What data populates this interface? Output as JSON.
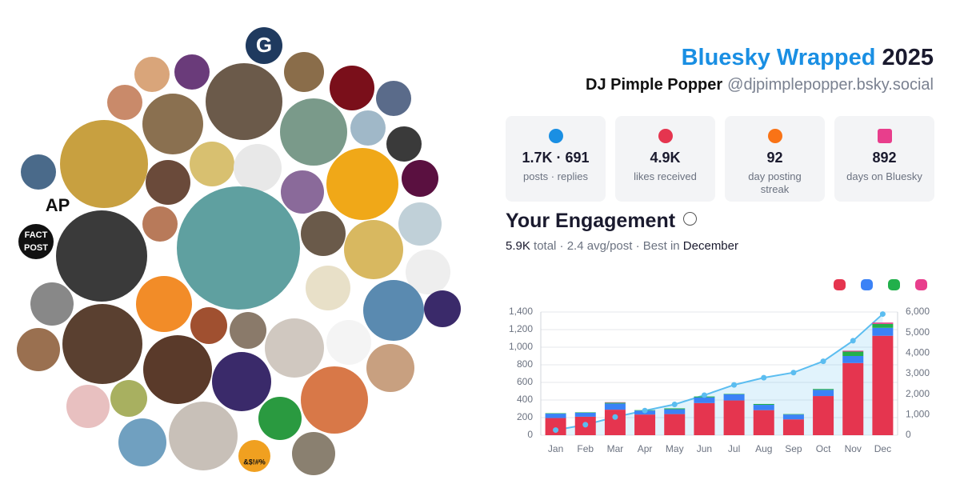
{
  "header": {
    "title": "Bluesky Wrapped",
    "year": "2025",
    "name": "DJ Pimple Popper",
    "handle": "@djpimplepopper.bsky.social"
  },
  "avatar_text": [
    "G",
    "AP",
    "FACT",
    "POST",
    "&$!#%"
  ],
  "stats": [
    {
      "value": "1.7K · 691",
      "label": "posts · replies"
    },
    {
      "value": "4.9K",
      "label": "likes received"
    },
    {
      "value": "92",
      "label": "day posting streak"
    },
    {
      "value": "892",
      "label": "days on Bluesky"
    }
  ],
  "engagement": {
    "heading": "Your Engagement",
    "summary": [
      "5.9K",
      "total · 2.4 avg/post · Best in",
      "December"
    ]
  },
  "chart_data": {
    "type": "bar",
    "categories": [
      "Jan",
      "Feb",
      "Mar",
      "Apr",
      "May",
      "Jun",
      "Jul",
      "Aug",
      "Sep",
      "Oct",
      "Nov",
      "Dec"
    ],
    "series": [
      {
        "color": "#e5354f",
        "values": [
          195,
          210,
          290,
          235,
          240,
          365,
          395,
          285,
          180,
          445,
          820,
          1130
        ]
      },
      {
        "color": "#3b82f6",
        "values": [
          50,
          45,
          70,
          45,
          55,
          65,
          70,
          60,
          55,
          70,
          80,
          90
        ]
      },
      {
        "color": "#22b04b",
        "values": [
          5,
          5,
          10,
          5,
          10,
          10,
          5,
          10,
          5,
          10,
          50,
          45
        ]
      },
      {
        "color": "#e83e8c",
        "values": [
          0,
          0,
          5,
          0,
          0,
          0,
          0,
          0,
          0,
          0,
          10,
          15
        ]
      },
      {
        "type": "line",
        "axis": "y2",
        "color": "#5bbdf0",
        "values": [
          250,
          510,
          885,
          1200,
          1500,
          1950,
          2450,
          2800,
          3050,
          3600,
          4600,
          5900
        ]
      }
    ],
    "ylim": [
      0,
      1400
    ],
    "yticks": [
      0,
      200,
      400,
      600,
      800,
      {
        "value": 1000,
        "label": "1,000"
      },
      {
        "value": 1200,
        "label": "1,200"
      },
      {
        "value": 1400,
        "label": "1,400"
      }
    ],
    "y2lim": [
      0,
      6000
    ],
    "y2ticks": [
      0,
      {
        "value": 1000,
        "label": "1,000"
      },
      {
        "value": 2000,
        "label": "2,000"
      },
      {
        "value": 3000,
        "label": "3,000"
      },
      {
        "value": 4000,
        "label": "4,000"
      },
      {
        "value": 5000,
        "label": "5,000"
      },
      {
        "value": 6000,
        "label": "6,000"
      }
    ],
    "grid": true
  }
}
